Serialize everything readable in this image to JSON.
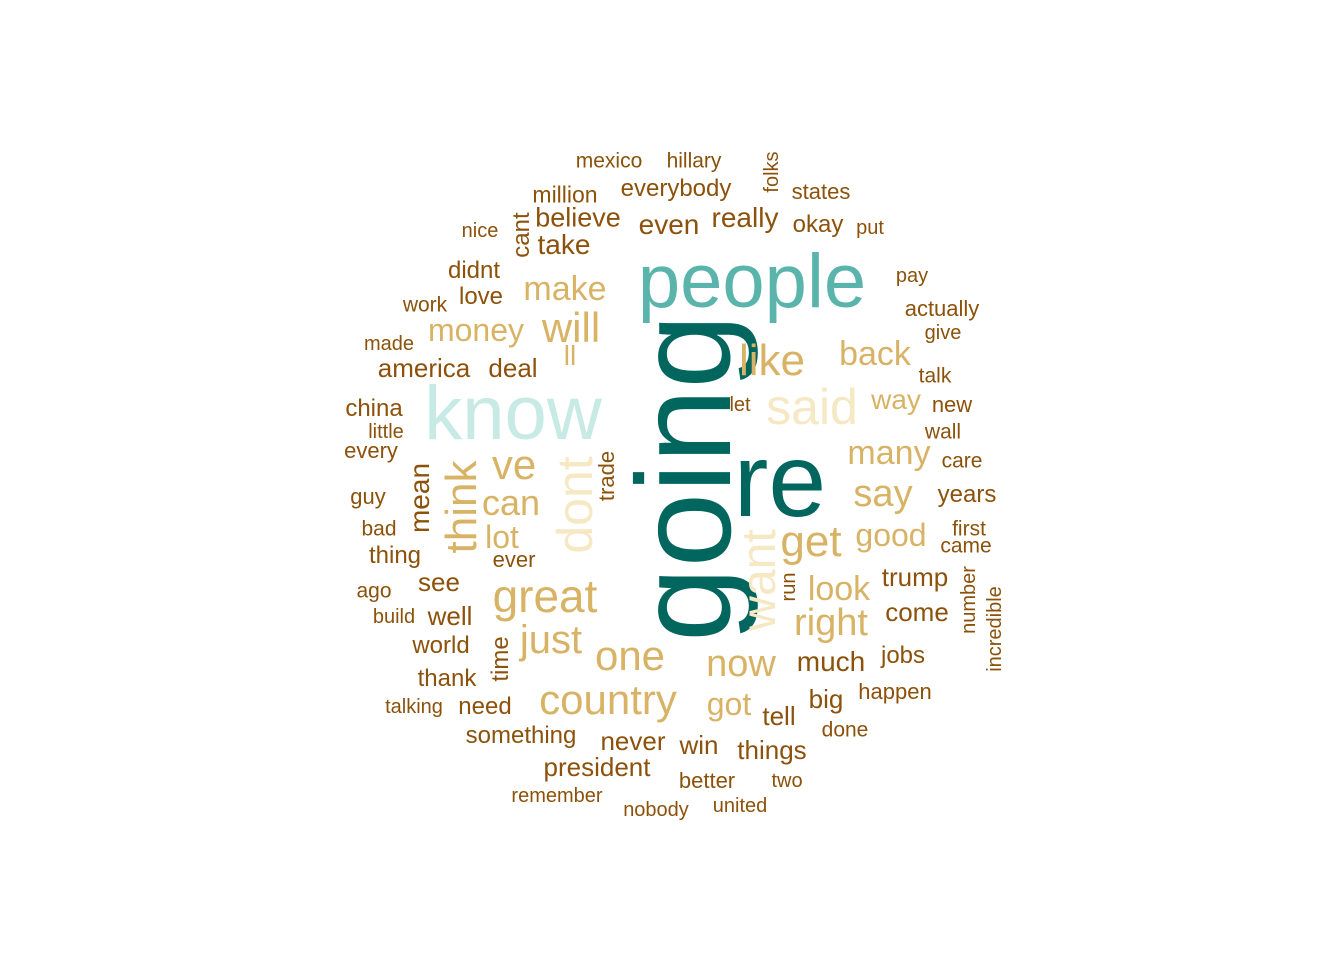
{
  "palette": {
    "brown": "#8C510A",
    "tan": "#D8B365",
    "cream": "#F6E8C3",
    "light_teal": "#C7EAE5",
    "teal": "#5AB4AC",
    "dark_teal": "#01665E"
  },
  "words": [
    {
      "text": "going"
    },
    {
      "text": "re"
    },
    {
      "text": "people"
    },
    {
      "text": "know"
    },
    {
      "text": "dont"
    },
    {
      "text": "want"
    },
    {
      "text": "said"
    },
    {
      "text": "think"
    },
    {
      "text": "will"
    },
    {
      "text": "great"
    },
    {
      "text": "country"
    },
    {
      "text": "one"
    },
    {
      "text": "just"
    },
    {
      "text": "ve"
    },
    {
      "text": "like"
    },
    {
      "text": "get"
    },
    {
      "text": "now"
    },
    {
      "text": "right"
    },
    {
      "text": "say"
    },
    {
      "text": "can"
    },
    {
      "text": "make"
    },
    {
      "text": "money"
    },
    {
      "text": "back"
    },
    {
      "text": "many"
    },
    {
      "text": "look"
    },
    {
      "text": "good"
    },
    {
      "text": "got"
    },
    {
      "text": "lot"
    },
    {
      "text": "ll"
    },
    {
      "text": "way"
    },
    {
      "text": "much"
    },
    {
      "text": "america"
    },
    {
      "text": "deal"
    },
    {
      "text": "believe"
    },
    {
      "text": "even"
    },
    {
      "text": "really"
    },
    {
      "text": "take"
    },
    {
      "text": "mean"
    },
    {
      "text": "trump"
    },
    {
      "text": "come"
    },
    {
      "text": "president"
    },
    {
      "text": "never"
    },
    {
      "text": "win"
    },
    {
      "text": "things"
    },
    {
      "text": "everybody"
    },
    {
      "text": "see"
    },
    {
      "text": "well"
    },
    {
      "text": "world"
    },
    {
      "text": "thank"
    },
    {
      "text": "love"
    },
    {
      "text": "didnt"
    },
    {
      "text": "china"
    },
    {
      "text": "tell"
    },
    {
      "text": "big"
    },
    {
      "text": "okay"
    },
    {
      "text": "states"
    },
    {
      "text": "million"
    },
    {
      "text": "jobs"
    },
    {
      "text": "years"
    },
    {
      "text": "something"
    },
    {
      "text": "need"
    },
    {
      "text": "thing"
    },
    {
      "text": "time"
    },
    {
      "text": "cant"
    },
    {
      "text": "happen"
    },
    {
      "text": "better"
    },
    {
      "text": "new"
    },
    {
      "text": "actually"
    },
    {
      "text": "every"
    },
    {
      "text": "ever"
    },
    {
      "text": "mexico"
    },
    {
      "text": "hillary"
    },
    {
      "text": "trade"
    },
    {
      "text": "first"
    },
    {
      "text": "care"
    },
    {
      "text": "came"
    },
    {
      "text": "guy"
    },
    {
      "text": "wall"
    },
    {
      "text": "talk"
    },
    {
      "text": "done"
    },
    {
      "text": "remember"
    },
    {
      "text": "united"
    },
    {
      "text": "nobody"
    },
    {
      "text": "two"
    },
    {
      "text": "work"
    },
    {
      "text": "ago"
    },
    {
      "text": "bad"
    },
    {
      "text": "build"
    },
    {
      "text": "folks"
    },
    {
      "text": "put"
    },
    {
      "text": "pay"
    },
    {
      "text": "give"
    },
    {
      "text": "let"
    },
    {
      "text": "little"
    },
    {
      "text": "made"
    },
    {
      "text": "nice"
    },
    {
      "text": "talking"
    },
    {
      "text": "run"
    },
    {
      "text": "number"
    },
    {
      "text": "incredible"
    }
  ]
}
